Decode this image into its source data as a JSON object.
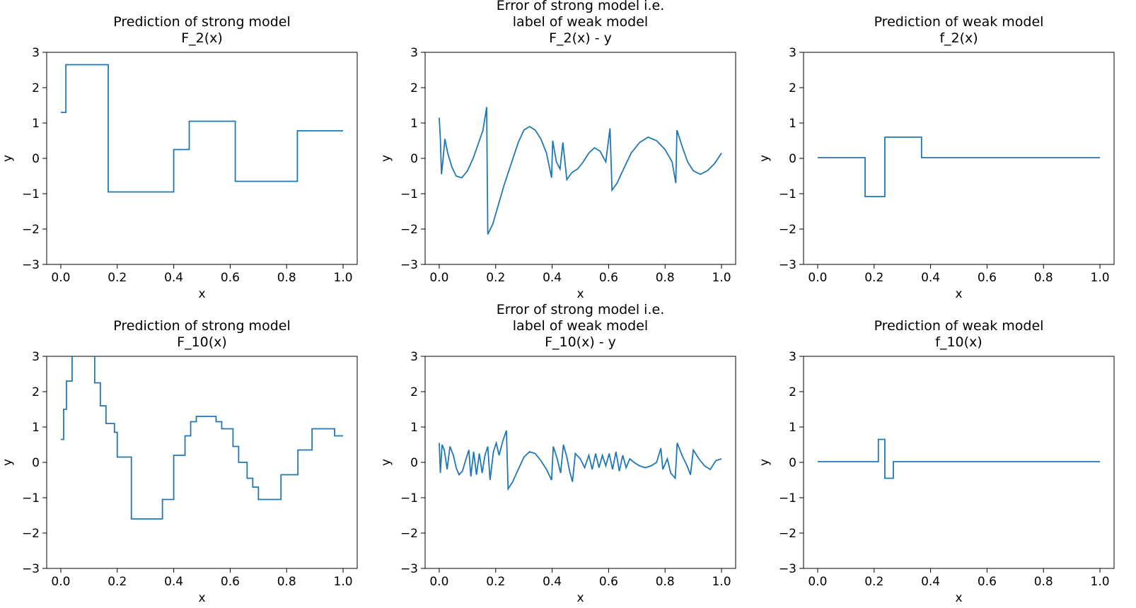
{
  "figure": {
    "background": "#ffffff",
    "line_color": "#1f77b4",
    "text_color": "#000000"
  },
  "chart_data": [
    {
      "type": "line",
      "title_lines": [
        "Prediction of strong model",
        "F_2(x)"
      ],
      "xlabel": "x",
      "ylabel": "y",
      "xlim": [
        -0.05,
        1.05
      ],
      "ylim": [
        -3,
        3
      ],
      "xticks": [
        0.0,
        0.2,
        0.4,
        0.6,
        0.8,
        1.0
      ],
      "xtick_labels": [
        "0.0",
        "0.2",
        "0.4",
        "0.6",
        "0.8",
        "1.0"
      ],
      "yticks": [
        -3,
        -2,
        -1,
        0,
        1,
        2,
        3
      ],
      "ytick_labels": [
        "−3",
        "−2",
        "−1",
        "0",
        "1",
        "2",
        "3"
      ],
      "grid": false,
      "legend": null,
      "points": [
        [
          0.0,
          1.3
        ],
        [
          0.018,
          1.3
        ],
        [
          0.018,
          2.65
        ],
        [
          0.168,
          2.65
        ],
        [
          0.168,
          -0.95
        ],
        [
          0.4,
          -0.95
        ],
        [
          0.4,
          0.25
        ],
        [
          0.455,
          0.25
        ],
        [
          0.455,
          1.05
        ],
        [
          0.618,
          1.05
        ],
        [
          0.618,
          -0.65
        ],
        [
          0.838,
          -0.65
        ],
        [
          0.838,
          0.78
        ],
        [
          1.0,
          0.78
        ]
      ]
    },
    {
      "type": "line",
      "title_lines": [
        "Error of strong model i.e.",
        "label of weak model",
        "F_2(x) - y"
      ],
      "xlabel": "x",
      "ylabel": "y",
      "xlim": [
        -0.05,
        1.05
      ],
      "ylim": [
        -3,
        3
      ],
      "xticks": [
        0.0,
        0.2,
        0.4,
        0.6,
        0.8,
        1.0
      ],
      "xtick_labels": [
        "0.0",
        "0.2",
        "0.4",
        "0.6",
        "0.8",
        "1.0"
      ],
      "yticks": [
        -3,
        -2,
        -1,
        0,
        1,
        2,
        3
      ],
      "ytick_labels": [
        "−3",
        "−2",
        "−1",
        "0",
        "1",
        "2",
        "3"
      ],
      "grid": false,
      "legend": null,
      "points": [
        [
          0.0,
          1.15
        ],
        [
          0.004,
          0.55
        ],
        [
          0.008,
          -0.45
        ],
        [
          0.012,
          -0.15
        ],
        [
          0.02,
          0.55
        ],
        [
          0.03,
          0.15
        ],
        [
          0.045,
          -0.25
        ],
        [
          0.06,
          -0.5
        ],
        [
          0.08,
          -0.55
        ],
        [
          0.1,
          -0.35
        ],
        [
          0.12,
          0.0
        ],
        [
          0.14,
          0.45
        ],
        [
          0.155,
          0.8
        ],
        [
          0.168,
          1.45
        ],
        [
          0.172,
          -2.15
        ],
        [
          0.19,
          -1.85
        ],
        [
          0.21,
          -1.3
        ],
        [
          0.23,
          -0.75
        ],
        [
          0.255,
          -0.15
        ],
        [
          0.28,
          0.45
        ],
        [
          0.3,
          0.8
        ],
        [
          0.32,
          0.9
        ],
        [
          0.34,
          0.8
        ],
        [
          0.36,
          0.55
        ],
        [
          0.38,
          0.15
        ],
        [
          0.398,
          -0.55
        ],
        [
          0.402,
          0.5
        ],
        [
          0.415,
          -0.1
        ],
        [
          0.428,
          -0.3
        ],
        [
          0.438,
          0.45
        ],
        [
          0.452,
          -0.6
        ],
        [
          0.47,
          -0.4
        ],
        [
          0.49,
          -0.3
        ],
        [
          0.51,
          -0.1
        ],
        [
          0.53,
          0.15
        ],
        [
          0.55,
          0.3
        ],
        [
          0.57,
          0.2
        ],
        [
          0.59,
          -0.1
        ],
        [
          0.605,
          0.85
        ],
        [
          0.612,
          -0.9
        ],
        [
          0.63,
          -0.7
        ],
        [
          0.65,
          -0.35
        ],
        [
          0.68,
          0.15
        ],
        [
          0.71,
          0.45
        ],
        [
          0.74,
          0.6
        ],
        [
          0.77,
          0.5
        ],
        [
          0.8,
          0.25
        ],
        [
          0.825,
          -0.1
        ],
        [
          0.838,
          -0.7
        ],
        [
          0.842,
          0.8
        ],
        [
          0.86,
          0.35
        ],
        [
          0.88,
          -0.1
        ],
        [
          0.9,
          -0.35
        ],
        [
          0.925,
          -0.45
        ],
        [
          0.95,
          -0.35
        ],
        [
          0.975,
          -0.15
        ],
        [
          1.0,
          0.15
        ]
      ]
    },
    {
      "type": "line",
      "title_lines": [
        "Prediction of weak model",
        "f_2(x)"
      ],
      "xlabel": "x",
      "ylabel": "y",
      "xlim": [
        -0.05,
        1.05
      ],
      "ylim": [
        -3,
        3
      ],
      "xticks": [
        0.0,
        0.2,
        0.4,
        0.6,
        0.8,
        1.0
      ],
      "xtick_labels": [
        "0.0",
        "0.2",
        "0.4",
        "0.6",
        "0.8",
        "1.0"
      ],
      "yticks": [
        -3,
        -2,
        -1,
        0,
        1,
        2,
        3
      ],
      "ytick_labels": [
        "−3",
        "−2",
        "−1",
        "0",
        "1",
        "2",
        "3"
      ],
      "grid": false,
      "legend": null,
      "points": [
        [
          0.0,
          0.02
        ],
        [
          0.168,
          0.02
        ],
        [
          0.168,
          -1.08
        ],
        [
          0.238,
          -1.08
        ],
        [
          0.238,
          0.6
        ],
        [
          0.368,
          0.6
        ],
        [
          0.368,
          0.02
        ],
        [
          1.0,
          0.02
        ]
      ]
    },
    {
      "type": "line",
      "title_lines": [
        "Prediction of strong model",
        "F_10(x)"
      ],
      "xlabel": "x",
      "ylabel": "y",
      "xlim": [
        -0.05,
        1.05
      ],
      "ylim": [
        -3,
        3
      ],
      "xticks": [
        0.0,
        0.2,
        0.4,
        0.6,
        0.8,
        1.0
      ],
      "xtick_labels": [
        "0.0",
        "0.2",
        "0.4",
        "0.6",
        "0.8",
        "1.0"
      ],
      "yticks": [
        -3,
        -2,
        -1,
        0,
        1,
        2,
        3
      ],
      "ytick_labels": [
        "−3",
        "−2",
        "−1",
        "0",
        "1",
        "2",
        "3"
      ],
      "grid": false,
      "legend": null,
      "points": [
        [
          0.0,
          0.65
        ],
        [
          0.01,
          0.65
        ],
        [
          0.01,
          1.5
        ],
        [
          0.02,
          1.5
        ],
        [
          0.02,
          2.3
        ],
        [
          0.04,
          2.3
        ],
        [
          0.04,
          3.4
        ],
        [
          0.12,
          3.4
        ],
        [
          0.12,
          2.25
        ],
        [
          0.14,
          2.25
        ],
        [
          0.14,
          1.6
        ],
        [
          0.16,
          1.6
        ],
        [
          0.16,
          1.1
        ],
        [
          0.19,
          1.1
        ],
        [
          0.19,
          0.85
        ],
        [
          0.2,
          0.85
        ],
        [
          0.2,
          0.15
        ],
        [
          0.25,
          0.15
        ],
        [
          0.25,
          -1.6
        ],
        [
          0.36,
          -1.6
        ],
        [
          0.36,
          -1.05
        ],
        [
          0.4,
          -1.05
        ],
        [
          0.4,
          0.2
        ],
        [
          0.44,
          0.2
        ],
        [
          0.44,
          0.75
        ],
        [
          0.46,
          0.75
        ],
        [
          0.46,
          1.15
        ],
        [
          0.48,
          1.15
        ],
        [
          0.48,
          1.3
        ],
        [
          0.55,
          1.3
        ],
        [
          0.55,
          1.15
        ],
        [
          0.57,
          1.15
        ],
        [
          0.57,
          0.95
        ],
        [
          0.61,
          0.95
        ],
        [
          0.61,
          0.45
        ],
        [
          0.63,
          0.45
        ],
        [
          0.63,
          0.0
        ],
        [
          0.66,
          0.0
        ],
        [
          0.66,
          -0.45
        ],
        [
          0.68,
          -0.45
        ],
        [
          0.68,
          -0.7
        ],
        [
          0.7,
          -0.7
        ],
        [
          0.7,
          -1.05
        ],
        [
          0.78,
          -1.05
        ],
        [
          0.78,
          -0.35
        ],
        [
          0.84,
          -0.35
        ],
        [
          0.84,
          0.35
        ],
        [
          0.89,
          0.35
        ],
        [
          0.89,
          0.95
        ],
        [
          0.97,
          0.95
        ],
        [
          0.97,
          0.75
        ],
        [
          1.0,
          0.75
        ]
      ]
    },
    {
      "type": "line",
      "title_lines": [
        "Error of strong model i.e.",
        "label of weak model",
        "F_10(x) - y"
      ],
      "xlabel": "x",
      "ylabel": "y",
      "xlim": [
        -0.05,
        1.05
      ],
      "ylim": [
        -3,
        3
      ],
      "xticks": [
        0.0,
        0.2,
        0.4,
        0.6,
        0.8,
        1.0
      ],
      "xtick_labels": [
        "0.0",
        "0.2",
        "0.4",
        "0.6",
        "0.8",
        "1.0"
      ],
      "yticks": [
        -3,
        -2,
        -1,
        0,
        1,
        2,
        3
      ],
      "ytick_labels": [
        "−3",
        "−2",
        "−1",
        "0",
        "1",
        "2",
        "3"
      ],
      "grid": false,
      "legend": null,
      "points": [
        [
          0.0,
          0.55
        ],
        [
          0.004,
          -0.3
        ],
        [
          0.01,
          0.5
        ],
        [
          0.018,
          0.35
        ],
        [
          0.028,
          -0.2
        ],
        [
          0.038,
          0.45
        ],
        [
          0.05,
          0.2
        ],
        [
          0.06,
          -0.15
        ],
        [
          0.07,
          -0.35
        ],
        [
          0.082,
          -0.25
        ],
        [
          0.095,
          0.1
        ],
        [
          0.105,
          0.35
        ],
        [
          0.112,
          -0.4
        ],
        [
          0.122,
          0.3
        ],
        [
          0.132,
          -0.35
        ],
        [
          0.142,
          0.25
        ],
        [
          0.152,
          -0.3
        ],
        [
          0.162,
          0.2
        ],
        [
          0.172,
          0.45
        ],
        [
          0.18,
          -0.5
        ],
        [
          0.192,
          0.3
        ],
        [
          0.202,
          0.55
        ],
        [
          0.212,
          0.2
        ],
        [
          0.225,
          0.6
        ],
        [
          0.238,
          0.9
        ],
        [
          0.244,
          -0.75
        ],
        [
          0.26,
          -0.55
        ],
        [
          0.28,
          -0.2
        ],
        [
          0.3,
          0.15
        ],
        [
          0.32,
          0.3
        ],
        [
          0.34,
          0.25
        ],
        [
          0.36,
          0.05
        ],
        [
          0.38,
          -0.2
        ],
        [
          0.398,
          -0.5
        ],
        [
          0.404,
          0.45
        ],
        [
          0.418,
          0.1
        ],
        [
          0.43,
          -0.3
        ],
        [
          0.44,
          0.5
        ],
        [
          0.452,
          0.15
        ],
        [
          0.462,
          -0.25
        ],
        [
          0.472,
          -0.55
        ],
        [
          0.482,
          0.25
        ],
        [
          0.5,
          0.1
        ],
        [
          0.515,
          -0.15
        ],
        [
          0.53,
          0.2
        ],
        [
          0.542,
          -0.2
        ],
        [
          0.554,
          0.25
        ],
        [
          0.566,
          -0.15
        ],
        [
          0.578,
          0.2
        ],
        [
          0.59,
          -0.1
        ],
        [
          0.602,
          0.25
        ],
        [
          0.614,
          -0.2
        ],
        [
          0.626,
          0.3
        ],
        [
          0.638,
          -0.25
        ],
        [
          0.65,
          0.2
        ],
        [
          0.662,
          -0.15
        ],
        [
          0.675,
          0.1
        ],
        [
          0.69,
          0.0
        ],
        [
          0.71,
          -0.1
        ],
        [
          0.73,
          -0.15
        ],
        [
          0.75,
          -0.1
        ],
        [
          0.77,
          0.0
        ],
        [
          0.785,
          0.4
        ],
        [
          0.792,
          -0.2
        ],
        [
          0.808,
          0.1
        ],
        [
          0.82,
          -0.3
        ],
        [
          0.836,
          -0.45
        ],
        [
          0.843,
          0.55
        ],
        [
          0.86,
          0.2
        ],
        [
          0.878,
          -0.1
        ],
        [
          0.89,
          -0.35
        ],
        [
          0.9,
          0.35
        ],
        [
          0.92,
          0.1
        ],
        [
          0.94,
          -0.1
        ],
        [
          0.96,
          -0.2
        ],
        [
          0.98,
          0.05
        ],
        [
          1.0,
          0.1
        ]
      ]
    },
    {
      "type": "line",
      "title_lines": [
        "Prediction of weak model",
        "f_10(x)"
      ],
      "xlabel": "x",
      "ylabel": "y",
      "xlim": [
        -0.05,
        1.05
      ],
      "ylim": [
        -3,
        3
      ],
      "xticks": [
        0.0,
        0.2,
        0.4,
        0.6,
        0.8,
        1.0
      ],
      "xtick_labels": [
        "0.0",
        "0.2",
        "0.4",
        "0.6",
        "0.8",
        "1.0"
      ],
      "yticks": [
        -3,
        -2,
        -1,
        0,
        1,
        2,
        3
      ],
      "ytick_labels": [
        "−3",
        "−2",
        "−1",
        "0",
        "1",
        "2",
        "3"
      ],
      "grid": false,
      "legend": null,
      "points": [
        [
          0.0,
          0.02
        ],
        [
          0.215,
          0.02
        ],
        [
          0.215,
          0.65
        ],
        [
          0.238,
          0.65
        ],
        [
          0.238,
          -0.45
        ],
        [
          0.268,
          -0.45
        ],
        [
          0.268,
          0.02
        ],
        [
          1.0,
          0.02
        ]
      ]
    }
  ]
}
